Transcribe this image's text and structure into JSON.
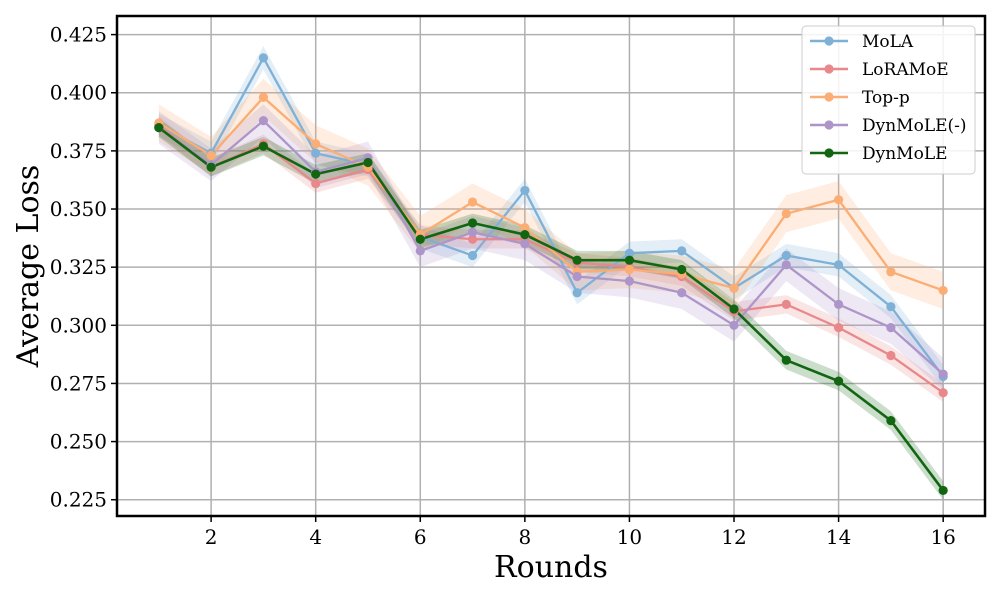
{
  "chart_data": {
    "type": "line",
    "title": "",
    "xlabel": "Rounds",
    "ylabel": "Average Loss",
    "xlim": [
      0.2,
      16.8
    ],
    "ylim": [
      0.218,
      0.433
    ],
    "x_ticks": [
      2,
      4,
      6,
      8,
      10,
      12,
      14,
      16
    ],
    "y_ticks": [
      0.225,
      0.25,
      0.275,
      0.3,
      0.325,
      0.35,
      0.375,
      0.4,
      0.425
    ],
    "x_tick_labels": [
      "2",
      "4",
      "6",
      "8",
      "10",
      "12",
      "14",
      "16"
    ],
    "y_tick_labels": [
      "0.225",
      "0.250",
      "0.275",
      "0.300",
      "0.325",
      "0.350",
      "0.375",
      "0.400",
      "0.425"
    ],
    "grid": true,
    "legend_position": "top-right",
    "x": [
      1,
      2,
      3,
      4,
      5,
      6,
      7,
      8,
      9,
      10,
      11,
      12,
      13,
      14,
      15,
      16
    ],
    "series": [
      {
        "name": "MoLA",
        "color": "#7fb0d6",
        "values": [
          0.386,
          0.374,
          0.415,
          0.374,
          0.369,
          0.338,
          0.33,
          0.358,
          0.314,
          0.331,
          0.332,
          0.316,
          0.33,
          0.326,
          0.308,
          0.278
        ],
        "band": 0.005
      },
      {
        "name": "LoRAMoE",
        "color": "#e8888a",
        "values": [
          0.386,
          0.368,
          0.378,
          0.361,
          0.367,
          0.339,
          0.337,
          0.337,
          0.327,
          0.325,
          0.321,
          0.306,
          0.309,
          0.299,
          0.287,
          0.271
        ],
        "band": 0.004
      },
      {
        "name": "Top-p",
        "color": "#fbad74",
        "values": [
          0.387,
          0.373,
          0.398,
          0.378,
          0.368,
          0.339,
          0.353,
          0.342,
          0.323,
          0.324,
          0.322,
          0.316,
          0.348,
          0.354,
          0.323,
          0.315
        ],
        "band": 0.008
      },
      {
        "name": "DynMoLE(-)",
        "color": "#ae95c9",
        "values": [
          0.385,
          0.369,
          0.388,
          0.366,
          0.372,
          0.332,
          0.34,
          0.335,
          0.321,
          0.319,
          0.314,
          0.3,
          0.326,
          0.309,
          0.299,
          0.279
        ],
        "band": 0.007
      },
      {
        "name": "DynMoLE",
        "color": "#126612",
        "values": [
          0.385,
          0.368,
          0.377,
          0.365,
          0.37,
          0.337,
          0.344,
          0.339,
          0.328,
          0.328,
          0.324,
          0.307,
          0.285,
          0.276,
          0.259,
          0.229
        ],
        "band": 0.004
      }
    ]
  }
}
